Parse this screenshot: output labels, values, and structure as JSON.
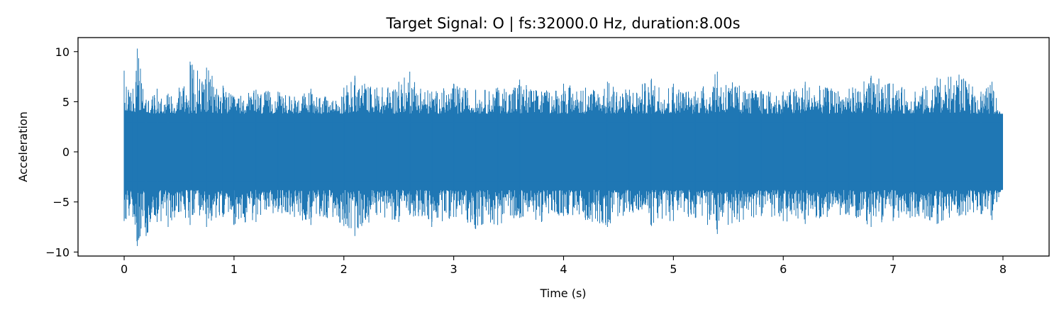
{
  "chart_data": {
    "type": "line",
    "title": "Target Signal: O  |  fs:32000.0 Hz, duration:8.00s",
    "xlabel": "Time (s)",
    "ylabel": "Acceleration",
    "xlim": [
      -0.42,
      8.42
    ],
    "ylim": [
      -10.4,
      11.4
    ],
    "xticks": [
      0,
      1,
      2,
      3,
      4,
      5,
      6,
      7,
      8
    ],
    "yticks": [
      -10,
      -5,
      0,
      5,
      10
    ],
    "ytick_labels": [
      "−10",
      "−5",
      "0",
      "5",
      "10"
    ],
    "grid": false,
    "legend": "none",
    "series": [
      {
        "color": "#1f77b4",
        "sample_rate_hz": 32000.0,
        "duration_s": 8.0,
        "envelope": {
          "t": [
            0.0,
            0.02,
            0.08,
            0.12,
            0.2,
            0.3,
            0.4,
            0.5,
            0.6,
            0.62,
            0.75,
            0.9,
            1.0,
            1.2,
            1.4,
            1.55,
            1.7,
            1.9,
            2.0,
            2.1,
            2.3,
            2.5,
            2.6,
            2.8,
            3.0,
            3.2,
            3.4,
            3.6,
            3.8,
            4.0,
            4.2,
            4.4,
            4.6,
            4.8,
            5.0,
            5.2,
            5.4,
            5.6,
            5.8,
            6.0,
            6.2,
            6.4,
            6.6,
            6.8,
            7.0,
            7.2,
            7.4,
            7.6,
            7.8,
            7.9,
            8.0
          ],
          "max": [
            8.1,
            6.5,
            6.3,
            10.3,
            5.2,
            6.3,
            5.8,
            6.4,
            9.0,
            8.7,
            8.4,
            6.6,
            5.5,
            6.2,
            6.0,
            5.5,
            6.3,
            5.1,
            6.4,
            7.6,
            6.4,
            7.0,
            8.0,
            6.0,
            6.8,
            6.2,
            6.4,
            7.2,
            6.0,
            6.8,
            6.4,
            7.0,
            6.2,
            7.3,
            6.8,
            6.0,
            8.0,
            6.6,
            6.1,
            6.0,
            7.0,
            6.4,
            6.3,
            7.6,
            6.8,
            6.0,
            7.4,
            7.7,
            6.0,
            7.0,
            3.0
          ],
          "min": [
            -6.9,
            -6.7,
            -6.5,
            -9.4,
            -8.4,
            -7.0,
            -7.5,
            -6.0,
            -7.3,
            -6.3,
            -7.5,
            -6.5,
            -7.3,
            -7.0,
            -6.0,
            -6.5,
            -7.3,
            -6.5,
            -7.4,
            -8.4,
            -6.3,
            -7.0,
            -6.3,
            -7.5,
            -6.5,
            -7.7,
            -7.3,
            -6.6,
            -7.0,
            -6.4,
            -6.8,
            -7.5,
            -6.0,
            -7.4,
            -6.9,
            -6.6,
            -8.2,
            -7.0,
            -6.4,
            -6.9,
            -7.2,
            -6.5,
            -6.3,
            -7.5,
            -6.9,
            -6.5,
            -7.2,
            -6.4,
            -6.2,
            -6.8,
            -3.2
          ]
        },
        "core_band": [
          -3.8,
          3.8
        ]
      }
    ]
  }
}
